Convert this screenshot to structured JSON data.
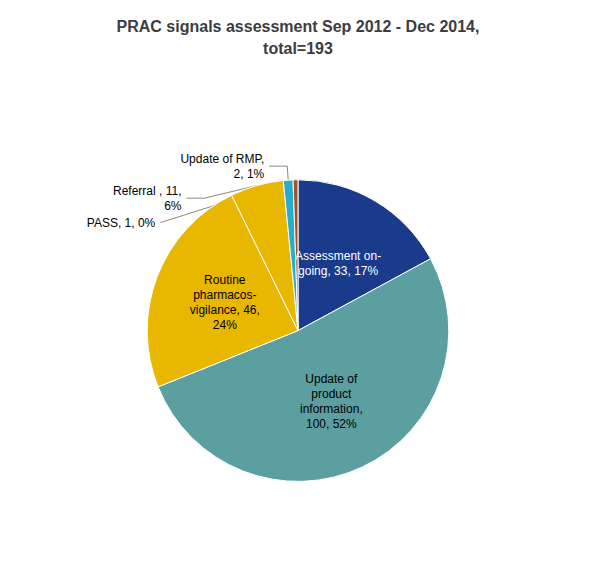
{
  "chart_data": {
    "type": "pie",
    "title": "PRAC signals assessment Sep 2012 - Dec 2014,\ntotal=193",
    "categories": [
      "Assessment on-\ngoing, 33, 17%",
      "Update of\nproduct\ninformation,\n100, 52%",
      "Routine\npharmacos-\nvigilance, 46,\n24%",
      "Referral , 11,\n6%",
      "Update of RMP,\n2, 1%",
      "PASS, 1, 0%"
    ],
    "values": [
      33,
      100,
      46,
      11,
      2,
      1
    ],
    "colors": [
      "#1A3A8C",
      "#5B9FA0",
      "#E8B800",
      "#E8B800",
      "#2AADCA",
      "#A0522D"
    ]
  }
}
